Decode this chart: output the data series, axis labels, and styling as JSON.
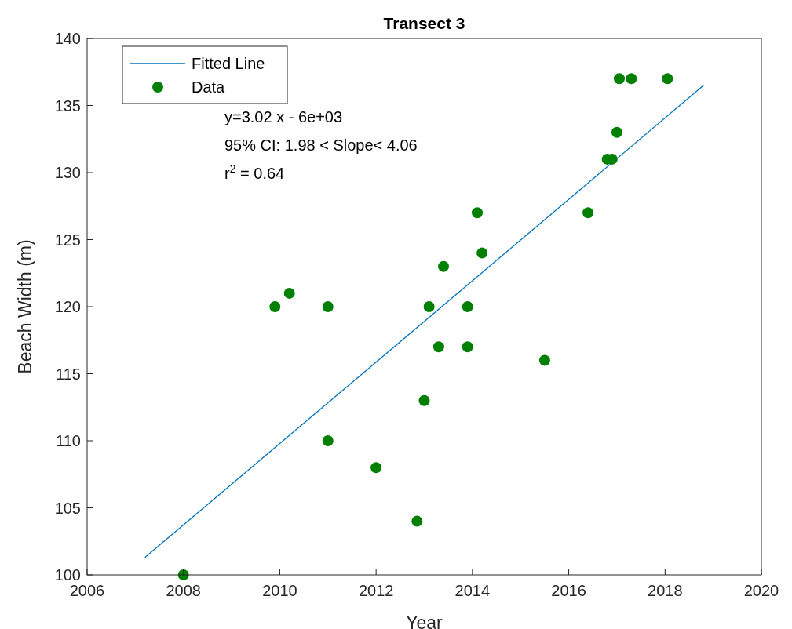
{
  "chart_data": {
    "type": "scatter",
    "title": "Transect 3",
    "xlabel": "Year",
    "ylabel": "Beach Width (m)",
    "xlim": [
      2006,
      2020
    ],
    "xticks": [
      2006,
      2008,
      2010,
      2012,
      2014,
      2016,
      2018,
      2020
    ],
    "ylim": [
      100,
      140
    ],
    "yticks": [
      100,
      105,
      110,
      115,
      120,
      125,
      130,
      135,
      140
    ],
    "grid": false,
    "legend": "top left",
    "marker": "circle",
    "annotations": [
      "y=3.02 x - 6e+03",
      "95% CI: 1.98 < Slope< 4.06",
      "r$^{2}$ = 0.64"
    ],
    "series": [
      {
        "name": "Fitted Line",
        "type": "line",
        "color": "#0072bd",
        "marker": "none",
        "line_style": "solid",
        "x": [
          2007.2,
          2018.8
        ],
        "values": [
          101.3,
          136.5
        ]
      },
      {
        "name": "Data",
        "color": "#008000",
        "x": [
          2008.0,
          2009.9,
          2010.2,
          2011.0,
          2011.0,
          2012.0,
          2012.85,
          2013.0,
          2013.1,
          2013.3,
          2013.4,
          2013.9,
          2013.9,
          2014.1,
          2014.2,
          2015.5,
          2016.4,
          2016.8,
          2016.9,
          2017.0,
          2017.05,
          2017.3,
          2018.05
        ],
        "values": [
          100,
          120,
          121,
          120,
          110,
          108,
          104,
          113,
          120,
          117,
          123,
          120,
          117,
          127,
          124,
          116,
          127,
          131,
          131,
          133,
          137,
          137,
          137
        ]
      }
    ]
  }
}
